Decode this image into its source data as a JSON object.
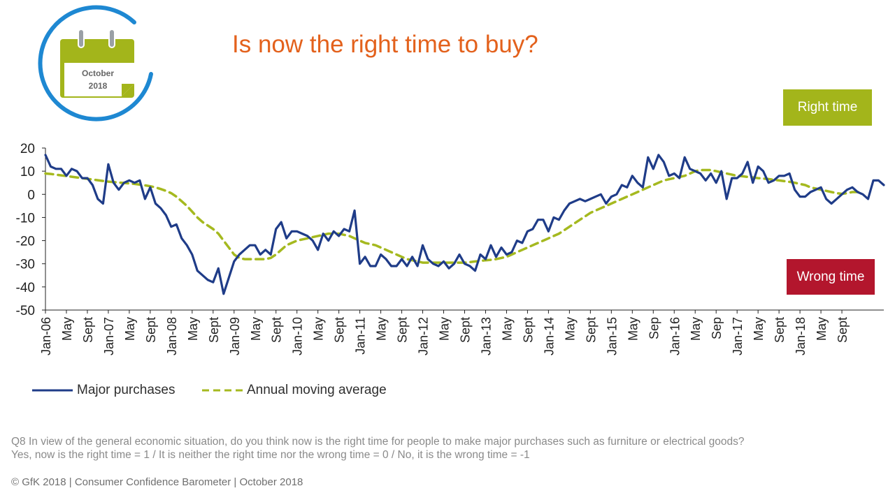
{
  "title": "Is now the right time to buy?",
  "badge": {
    "month": "October",
    "year": "2018",
    "icon": "calendar-icon"
  },
  "tags": {
    "right": "Right time",
    "wrong": "Wrong time"
  },
  "notes": {
    "line1": "Q8 In view of the general economic situation, do you think now is the right time for people to make major purchases such as furniture or electrical goods?",
    "line2": "Yes, now is the right time = 1 / It is neither the right time nor the wrong time = 0 / No, it is the wrong time = -1"
  },
  "footer": "© GfK 2018 | Consumer Confidence Barometer | October 2018",
  "colors": {
    "title": "#e3611c",
    "primary": "#1f3c88",
    "average": "#a5b91f",
    "right_tag": "#a3b51b",
    "wrong_tag": "#b3162d",
    "badge_ring": "#1e88d2"
  },
  "chart_data": {
    "type": "line",
    "ylim": [
      -50,
      20
    ],
    "yticks": [
      20,
      10,
      0,
      -10,
      -20,
      -30,
      -40,
      -50
    ],
    "grid": false,
    "legend_position": "bottom-left",
    "x_tick_labels": [
      "Jan-06",
      "May",
      "Sept",
      "Jan-07",
      "May",
      "Sept",
      "Jan-08",
      "May",
      "Sept",
      "Jan-09",
      "May",
      "Sept",
      "Jan-10",
      "May",
      "Sept",
      "Jan-11",
      "May",
      "Sept",
      "Jan-12",
      "May",
      "Sept",
      "Jan-13",
      "May",
      "Sept",
      "Jan-14",
      "May",
      "Sept",
      "Jan-15",
      "May",
      "Sep",
      "Jan-16",
      "May",
      "Sep",
      "Jan-17",
      "May",
      "Sept",
      "Jan-18",
      "May",
      "Sept"
    ],
    "series": [
      {
        "name": "Major purchases",
        "style": "solid",
        "values": [
          17,
          12,
          11,
          11,
          8,
          11,
          10,
          7,
          7,
          4,
          -2,
          -4,
          13,
          5,
          2,
          5,
          6,
          5,
          6,
          -2,
          3,
          -4,
          -6,
          -9,
          -14,
          -13,
          -19,
          -22,
          -26,
          -33,
          -35,
          -37,
          -38,
          -32,
          -43,
          -36,
          -29,
          -26,
          -24,
          -22,
          -22,
          -26,
          -24,
          -26,
          -15,
          -12,
          -19,
          -16,
          -16,
          -17,
          -18,
          -20,
          -24,
          -17,
          -20,
          -16,
          -18,
          -15,
          -16,
          -7,
          -30,
          -27,
          -31,
          -31,
          -26,
          -28,
          -31,
          -31,
          -28,
          -31,
          -27,
          -31,
          -22,
          -28,
          -30,
          -31,
          -29,
          -32,
          -30,
          -26,
          -30,
          -31,
          -33,
          -26,
          -28,
          -22,
          -27,
          -23,
          -26,
          -25,
          -20,
          -21,
          -16,
          -15,
          -11,
          -11,
          -16,
          -10,
          -11,
          -7,
          -4,
          -3,
          -2,
          -3,
          -2,
          -1,
          0,
          -4,
          -1,
          0,
          4,
          3,
          8,
          5,
          3,
          16,
          11,
          17,
          14,
          8,
          9,
          7,
          16,
          11,
          10,
          9,
          6,
          9,
          5,
          10,
          -2,
          7,
          7,
          9,
          14,
          5,
          12,
          10,
          5,
          6,
          8,
          8,
          9,
          2,
          -1,
          -1,
          1,
          2,
          3,
          -2,
          -4,
          -2,
          0,
          2,
          3,
          1,
          0,
          -2,
          6,
          6,
          4
        ],
        "show_every_nth_x_label": 4
      },
      {
        "name": "Annual moving average",
        "style": "dashed",
        "values": [
          9,
          8.8,
          8.5,
          8.2,
          7.9,
          7.6,
          7.3,
          7,
          6.7,
          6.4,
          6.1,
          5.8,
          5.5,
          5.3,
          5.1,
          4.9,
          4.7,
          4.5,
          4.2,
          3.9,
          3.5,
          3,
          2.3,
          1.5,
          0.5,
          -1,
          -3,
          -5,
          -7.5,
          -10,
          -12,
          -13.5,
          -15,
          -17,
          -20,
          -23,
          -26,
          -27.5,
          -28,
          -28,
          -28,
          -28,
          -28,
          -27.5,
          -26,
          -24,
          -22,
          -21,
          -20,
          -19.5,
          -19,
          -18.5,
          -18,
          -17.5,
          -17,
          -17,
          -17,
          -17.5,
          -18,
          -19,
          -20,
          -21,
          -21.5,
          -22,
          -23,
          -24,
          -25,
          -26,
          -27,
          -28,
          -28.5,
          -29,
          -29.5,
          -29.5,
          -29.5,
          -29.5,
          -29.5,
          -29.5,
          -29.5,
          -29.5,
          -29.5,
          -29.3,
          -29,
          -28.8,
          -28.5,
          -28.3,
          -28,
          -27.5,
          -27,
          -26,
          -25,
          -24,
          -23,
          -22,
          -21,
          -20,
          -19,
          -18,
          -17,
          -15.5,
          -14,
          -12.5,
          -11,
          -9.5,
          -8,
          -7,
          -6,
          -5,
          -4,
          -3,
          -2,
          -1,
          0,
          1,
          2,
          3,
          4,
          5,
          6,
          6.5,
          7,
          7.5,
          8,
          9,
          10,
          10.5,
          10.5,
          10.5,
          10,
          9.5,
          9,
          8.5,
          8,
          7.8,
          7.5,
          7.3,
          7,
          6.8,
          6.6,
          6.3,
          6,
          5.7,
          5.4,
          5,
          4.5,
          4,
          3,
          2.5,
          2,
          1.5,
          1,
          0.5,
          0.2,
          0.5,
          1,
          1,
          1
        ]
      }
    ]
  }
}
